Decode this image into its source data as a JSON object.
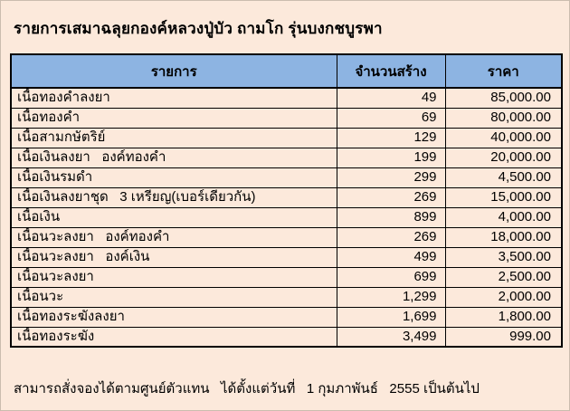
{
  "page": {
    "title": "รายการเสมาฉลุยกองค์หลวงปู่บัว ถามโก รุ่นบงกชบูรพา",
    "footer": "สามารถสั่งจองได้ตามศูนย์ตัวแทน   ได้ตั้งแต่วันที่   1 กุมภาพันธ์   2555 เป็นต้นไป"
  },
  "colors": {
    "background": "#FCE9DB",
    "row_background": "#FCE9DB",
    "header_background": "#8DB4E2",
    "border": "#000000",
    "text": "#000000"
  },
  "table": {
    "columns": {
      "item": "รายการ",
      "qty": "จำนวนสร้าง",
      "price": "ราคา"
    },
    "rows": [
      {
        "item": "เนื้อทองคำลงยา",
        "qty": "49",
        "price": "85,000.00"
      },
      {
        "item": "เนื้อทองคำ",
        "qty": "69",
        "price": "80,000.00"
      },
      {
        "item": "เนื้อสามกษัตริย์",
        "qty": "129",
        "price": "40,000.00"
      },
      {
        "item": "เนื้อเงินลงยา   องค์ทองคำ",
        "qty": "199",
        "price": "20,000.00"
      },
      {
        "item": "เนื้อเงินรมดำ",
        "qty": "299",
        "price": "4,500.00"
      },
      {
        "item": "เนื้อเงินลงยาชุด   3 เหรียญ(เบอร์เดียวกัน)",
        "qty": "269",
        "price": "15,000.00"
      },
      {
        "item": "เนื้อเงิน",
        "qty": "899",
        "price": "4,000.00"
      },
      {
        "item": "เนื้อนวะลงยา   องค์ทองคำ",
        "qty": "269",
        "price": "18,000.00"
      },
      {
        "item": "เนื้อนวะลงยา   องค์เงิน",
        "qty": "499",
        "price": "3,500.00"
      },
      {
        "item": "เนื้อนวะลงยา",
        "qty": "699",
        "price": "2,500.00"
      },
      {
        "item": "เนื้อนวะ",
        "qty": "1,299",
        "price": "2,000.00"
      },
      {
        "item": "เนื้อทองระฆังลงยา",
        "qty": "1,699",
        "price": "1,800.00"
      },
      {
        "item": "เนื้อทองระฆัง",
        "qty": "3,499",
        "price": "999.00"
      }
    ]
  }
}
